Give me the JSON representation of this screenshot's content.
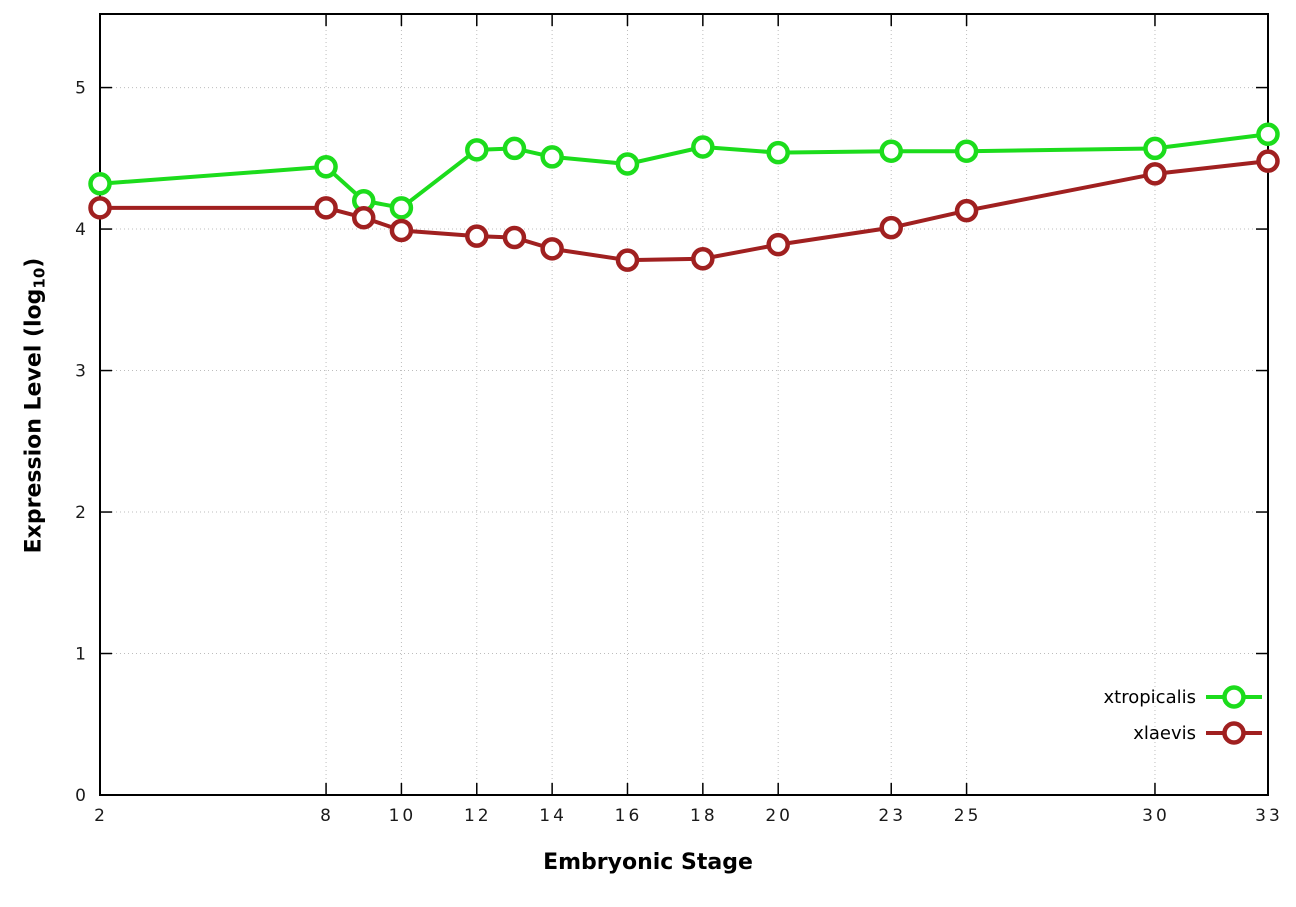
{
  "chart": {
    "xlabel": "Embryonic Stage",
    "ylabel_prefix": "Expression Level (log",
    "ylabel_sub": "10",
    "ylabel_suffix": ")"
  },
  "chart_data": {
    "type": "line",
    "title": "",
    "xlabel": "Embryonic Stage",
    "ylabel": "Expression Level (log10)",
    "x": [
      2,
      8,
      9,
      10,
      12,
      13,
      14,
      16,
      18,
      20,
      23,
      25,
      30,
      33
    ],
    "series": [
      {
        "name": "xtropicalis",
        "color": "#1cdc1c",
        "marker": "open-circle",
        "values": [
          4.32,
          4.44,
          4.2,
          4.15,
          4.56,
          4.57,
          4.51,
          4.46,
          4.58,
          4.54,
          4.55,
          4.55,
          4.57,
          4.67
        ]
      },
      {
        "name": "xlaevis",
        "color": "#a02020",
        "marker": "open-circle",
        "values": [
          4.15,
          4.15,
          4.08,
          3.99,
          3.95,
          3.94,
          3.86,
          3.78,
          3.79,
          3.89,
          4.01,
          4.13,
          4.39,
          4.48
        ]
      }
    ],
    "xticks": [
      2,
      8,
      10,
      12,
      14,
      16,
      18,
      20,
      23,
      25,
      30,
      33
    ],
    "yticks": [
      0,
      1,
      2,
      3,
      4,
      5
    ],
    "xlim": [
      2,
      33
    ],
    "ylim": [
      0,
      5.52
    ],
    "grid": true,
    "legend_position": "bottom-right"
  }
}
